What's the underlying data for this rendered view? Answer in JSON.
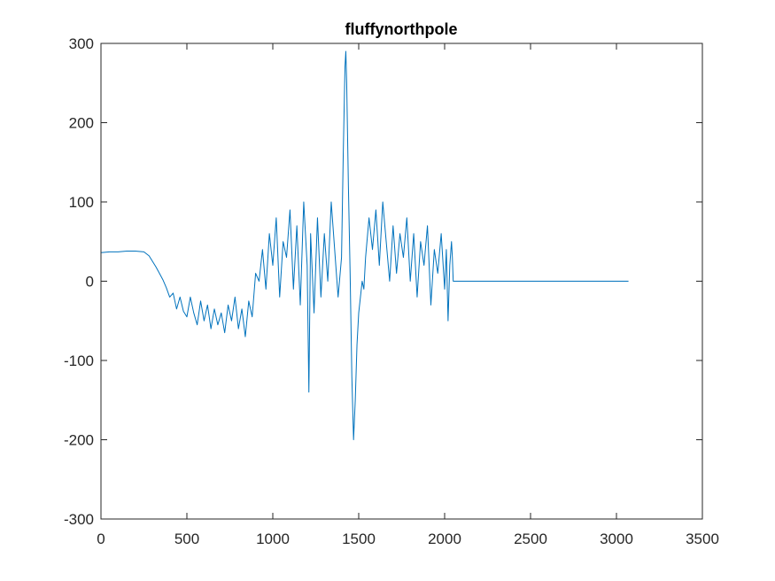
{
  "chart_data": {
    "type": "line",
    "title": "fluffynorthpole",
    "xlabel": "",
    "ylabel": "",
    "xlim": [
      0,
      3500
    ],
    "ylim": [
      -300,
      300
    ],
    "xticks": [
      0,
      500,
      1000,
      1500,
      2000,
      2500,
      3000,
      3500
    ],
    "yticks": [
      -300,
      -200,
      -100,
      0,
      100,
      200,
      300
    ],
    "xtick_labels": [
      "0",
      "500",
      "1000",
      "1500",
      "2000",
      "2500",
      "3000",
      "3500"
    ],
    "ytick_labels": [
      "-300",
      "-200",
      "-100",
      "0",
      "100",
      "200",
      "300"
    ],
    "grid": false,
    "line_color": "#0072BD",
    "axis_color": "#262626",
    "series": [
      {
        "x": [
          0,
          50,
          100,
          150,
          200,
          250,
          280,
          300,
          320,
          340,
          360,
          380,
          400,
          420,
          440,
          460,
          480,
          500,
          520,
          540,
          560,
          580,
          600,
          620,
          640,
          660,
          680,
          700,
          720,
          740,
          760,
          780,
          800,
          820,
          840,
          860,
          880,
          900,
          920,
          940,
          960,
          980,
          1000,
          1020,
          1040,
          1060,
          1080,
          1100,
          1120,
          1140,
          1160,
          1180,
          1200,
          1210,
          1220,
          1240,
          1260,
          1280,
          1300,
          1320,
          1340,
          1360,
          1380,
          1400,
          1410,
          1420,
          1425,
          1430,
          1440,
          1450,
          1460,
          1470,
          1480,
          1490,
          1500,
          1510,
          1520,
          1530,
          1540,
          1560,
          1580,
          1600,
          1620,
          1640,
          1660,
          1680,
          1700,
          1720,
          1740,
          1760,
          1780,
          1800,
          1820,
          1840,
          1860,
          1880,
          1900,
          1920,
          1940,
          1960,
          1980,
          2000,
          2010,
          2020,
          2030,
          2040,
          2045,
          2050,
          2100,
          2500,
          3000,
          3070
        ],
        "y": [
          36,
          37,
          37,
          38,
          38,
          37,
          32,
          25,
          18,
          10,
          2,
          -8,
          -20,
          -15,
          -35,
          -20,
          -38,
          -45,
          -20,
          -40,
          -55,
          -25,
          -50,
          -30,
          -60,
          -35,
          -55,
          -40,
          -65,
          -30,
          -50,
          -20,
          -60,
          -35,
          -70,
          -25,
          -45,
          10,
          0,
          40,
          -10,
          60,
          20,
          80,
          -20,
          50,
          30,
          90,
          -10,
          70,
          -30,
          100,
          20,
          -140,
          60,
          -40,
          80,
          -20,
          60,
          0,
          100,
          40,
          -20,
          30,
          160,
          270,
          290,
          250,
          120,
          10,
          -120,
          -200,
          -150,
          -80,
          -40,
          -20,
          0,
          -10,
          30,
          80,
          40,
          90,
          20,
          100,
          50,
          0,
          70,
          10,
          60,
          30,
          80,
          0,
          60,
          -20,
          50,
          20,
          70,
          -30,
          40,
          10,
          60,
          -10,
          40,
          -50,
          20,
          50,
          30,
          0,
          0,
          0,
          0,
          0
        ]
      }
    ]
  }
}
